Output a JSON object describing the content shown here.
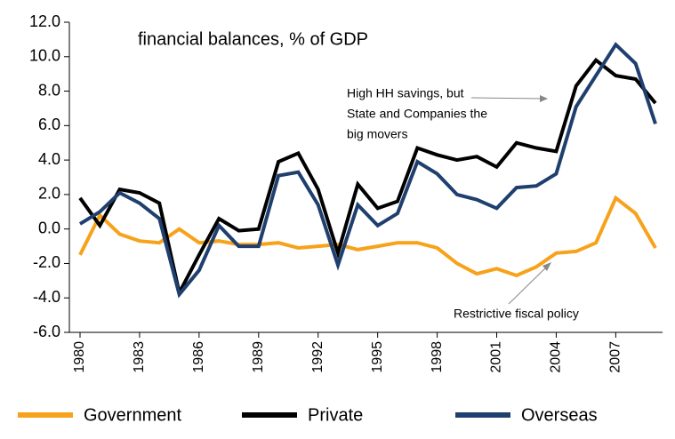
{
  "chart_data": {
    "type": "line",
    "title": "financial balances, % of GDP",
    "annotations": [
      {
        "lines": [
          "High HH savings, but",
          "State and Companies the",
          "big movers"
        ]
      },
      {
        "lines": [
          "Restrictive fiscal policy"
        ]
      }
    ],
    "x": [
      1980,
      1981,
      1982,
      1983,
      1984,
      1985,
      1986,
      1987,
      1988,
      1989,
      1990,
      1991,
      1992,
      1993,
      1994,
      1995,
      1996,
      1997,
      1998,
      1999,
      2000,
      2001,
      2002,
      2003,
      2004,
      2005,
      2006,
      2007,
      2008,
      2009
    ],
    "series": [
      {
        "name": "Government",
        "color": "#f7a21b",
        "values": [
          -1.5,
          0.8,
          -0.3,
          -0.7,
          -0.8,
          0.0,
          -0.8,
          -0.7,
          -0.9,
          -0.9,
          -0.8,
          -1.1,
          -1.0,
          -0.9,
          -1.2,
          -1.0,
          -0.8,
          -0.8,
          -1.1,
          -2.0,
          -2.6,
          -2.3,
          -2.7,
          -2.2,
          -1.4,
          -1.3,
          -0.8,
          1.8,
          0.9,
          -1.1
        ]
      },
      {
        "name": "Private",
        "color": "#000000",
        "values": [
          1.8,
          0.2,
          2.3,
          2.1,
          1.5,
          -3.7,
          -1.5,
          0.6,
          -0.1,
          0.0,
          3.9,
          4.4,
          2.3,
          -1.4,
          2.6,
          1.2,
          1.6,
          4.7,
          4.3,
          4.0,
          4.2,
          3.6,
          5.0,
          4.7,
          4.5,
          8.3,
          9.8,
          8.9,
          8.7,
          7.3
        ]
      },
      {
        "name": "Overseas",
        "color": "#1f3f6e",
        "values": [
          0.3,
          1.0,
          2.1,
          1.5,
          0.6,
          -3.8,
          -2.4,
          0.2,
          -1.0,
          -1.0,
          3.1,
          3.3,
          1.4,
          -2.1,
          1.4,
          0.2,
          0.9,
          3.9,
          3.2,
          2.0,
          1.7,
          1.2,
          2.4,
          2.5,
          3.2,
          7.1,
          8.9,
          10.7,
          9.6,
          6.1
        ]
      }
    ],
    "xlim": [
      1980,
      2009
    ],
    "xticks": [
      1980,
      1983,
      1986,
      1989,
      1992,
      1995,
      1998,
      2001,
      2004,
      2007
    ],
    "ylim": [
      -6,
      12
    ],
    "yticks": [
      {
        "value": -6,
        "label": "-6.0"
      },
      {
        "value": -4,
        "label": "-4.0"
      },
      {
        "value": -2,
        "label": "-2.0"
      },
      {
        "value": 0,
        "label": "0.0"
      },
      {
        "value": 2,
        "label": "2.0"
      },
      {
        "value": 4,
        "label": "4.0"
      },
      {
        "value": 6,
        "label": "6.0"
      },
      {
        "value": 8,
        "label": "8.0"
      },
      {
        "value": 10,
        "label": "10.0"
      },
      {
        "value": 12,
        "label": "12.0"
      }
    ],
    "legend": "bottom"
  }
}
